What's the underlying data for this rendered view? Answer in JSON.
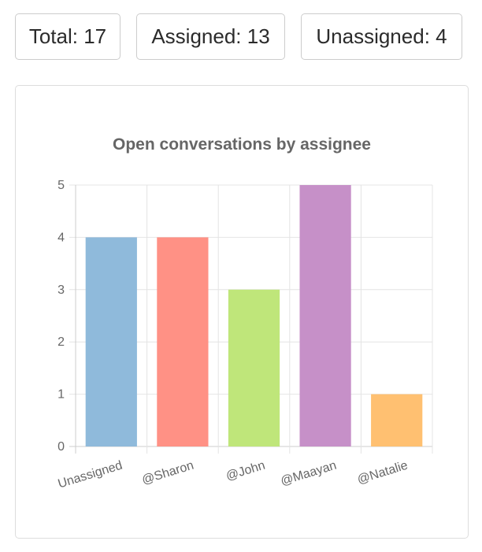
{
  "stats": {
    "total": "Total: 17",
    "assigned": "Assigned: 13",
    "unassigned": "Unassigned: 4"
  },
  "chart_data": {
    "type": "bar",
    "title": "Open conversations by assignee",
    "categories": [
      "Unassigned",
      "@Sharon",
      "@John",
      "@Maayan",
      "@Natalie"
    ],
    "values": [
      4,
      4,
      3,
      5,
      1
    ],
    "colors": [
      "#8fbadb",
      "#ff9185",
      "#bfe67a",
      "#c690c8",
      "#ffc071"
    ],
    "yticks": [
      0,
      1,
      2,
      3,
      4,
      5
    ],
    "ylim": [
      0,
      5
    ],
    "xlabel": "",
    "ylabel": "",
    "grid": true,
    "legend": "none"
  }
}
